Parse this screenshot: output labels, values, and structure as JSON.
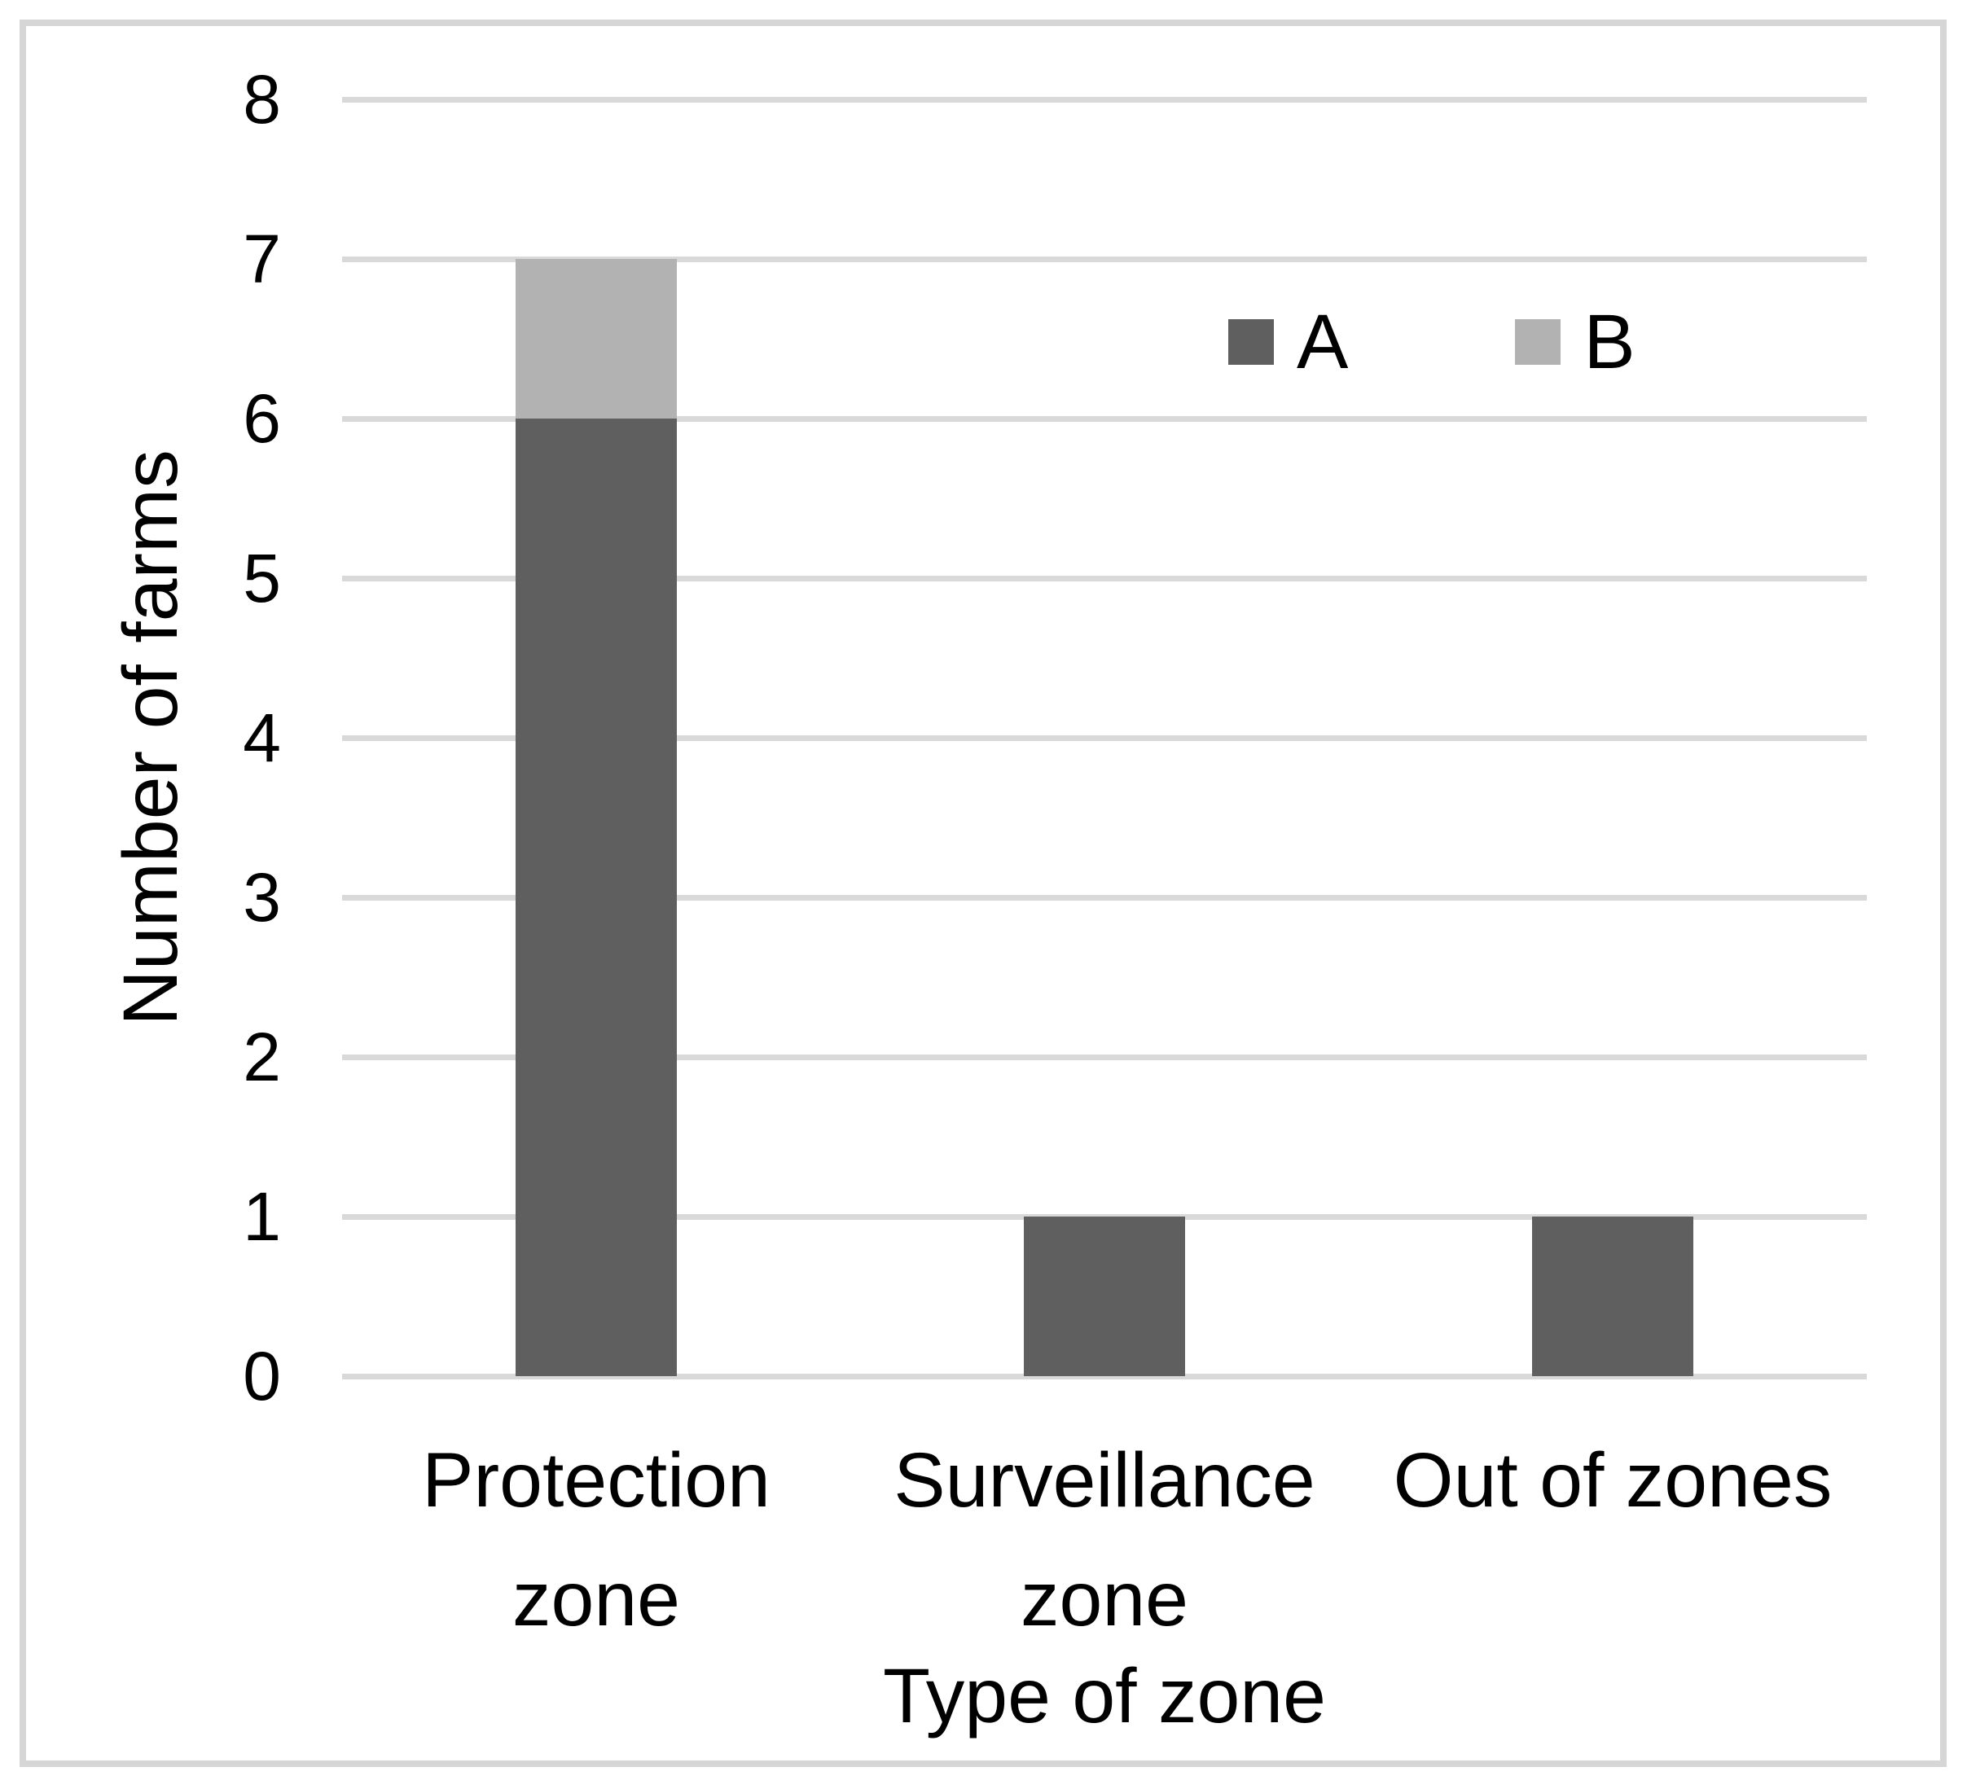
{
  "chart_data": {
    "type": "bar",
    "stacked": true,
    "title": "",
    "xlabel": "Type of zone",
    "ylabel": "Number of farms",
    "categories": [
      "Protection zone",
      "Surveillance zone",
      "Out of zones"
    ],
    "series": [
      {
        "name": "A",
        "color": "#5f5f5f",
        "values": [
          6,
          1,
          1
        ]
      },
      {
        "name": "B",
        "color": "#b2b2b2",
        "values": [
          1,
          0,
          0
        ]
      }
    ],
    "totals": [
      7,
      1,
      1
    ],
    "ylim": [
      0,
      8
    ],
    "yticks": [
      0,
      1,
      2,
      3,
      4,
      5,
      6,
      7,
      8
    ],
    "grid": true,
    "gridline_color": "#d9d9d9",
    "legend_position": "inside-upper-right",
    "legend_labels": [
      "A",
      "B"
    ],
    "frame_color": "#d6d6d6",
    "background": "#ffffff",
    "text_color": "#000000"
  }
}
